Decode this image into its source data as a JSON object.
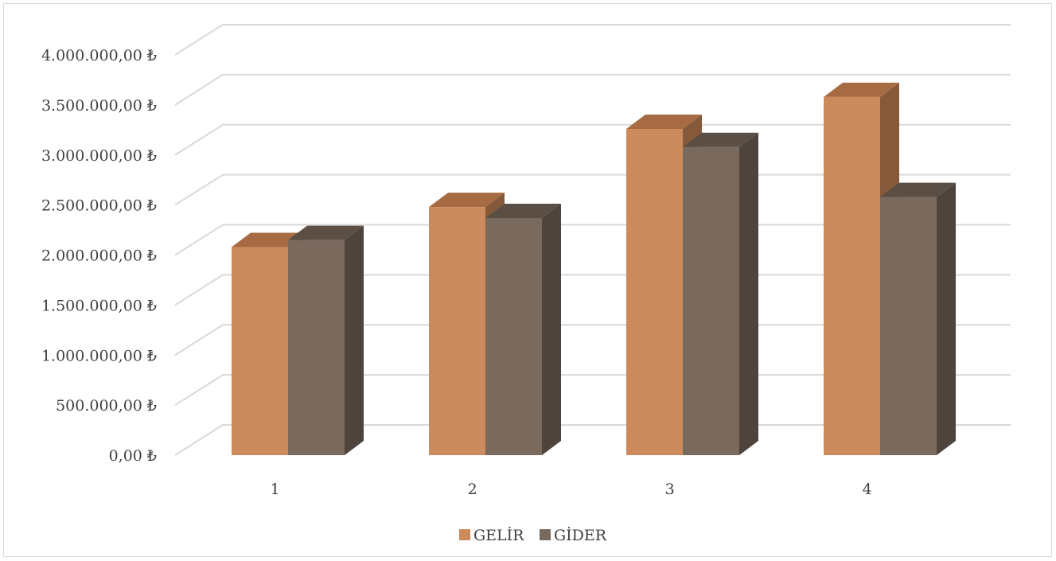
{
  "chart_data": {
    "type": "bar",
    "style": "3d-clustered-column",
    "categories": [
      "1",
      "2",
      "3",
      "4"
    ],
    "series": [
      {
        "name": "GELİR",
        "values": [
          2080000,
          2480000,
          3260000,
          3580000
        ],
        "colors": {
          "front": "#CC8B5C",
          "top": "#A66B42",
          "side": "#86593A"
        }
      },
      {
        "name": "GİDER",
        "values": [
          2150000,
          2370000,
          3080000,
          2580000
        ],
        "colors": {
          "front": "#7A695D",
          "top": "#5A4E45",
          "side": "#4E443C"
        }
      }
    ],
    "y_ticks": [
      {
        "value": 0,
        "label": "0,00 ₺"
      },
      {
        "value": 500000,
        "label": "500.000,00 ₺"
      },
      {
        "value": 1000000,
        "label": "1.000.000,00 ₺"
      },
      {
        "value": 1500000,
        "label": "1.500.000,00 ₺"
      },
      {
        "value": 2000000,
        "label": "2.000.000,00 ₺"
      },
      {
        "value": 2500000,
        "label": "2.500.000,00 ₺"
      },
      {
        "value": 3000000,
        "label": "3.000.000,00 ₺"
      },
      {
        "value": 3500000,
        "label": "3.500.000,00 ₺"
      },
      {
        "value": 4000000,
        "label": "4.000.000,00 ₺"
      }
    ],
    "ylim": [
      0,
      4000000
    ],
    "title": "",
    "xlabel": "",
    "ylabel": "",
    "grid": true,
    "legend_position": "bottom",
    "gridline_color": "#D9D9D9",
    "text_color": "#404040"
  }
}
